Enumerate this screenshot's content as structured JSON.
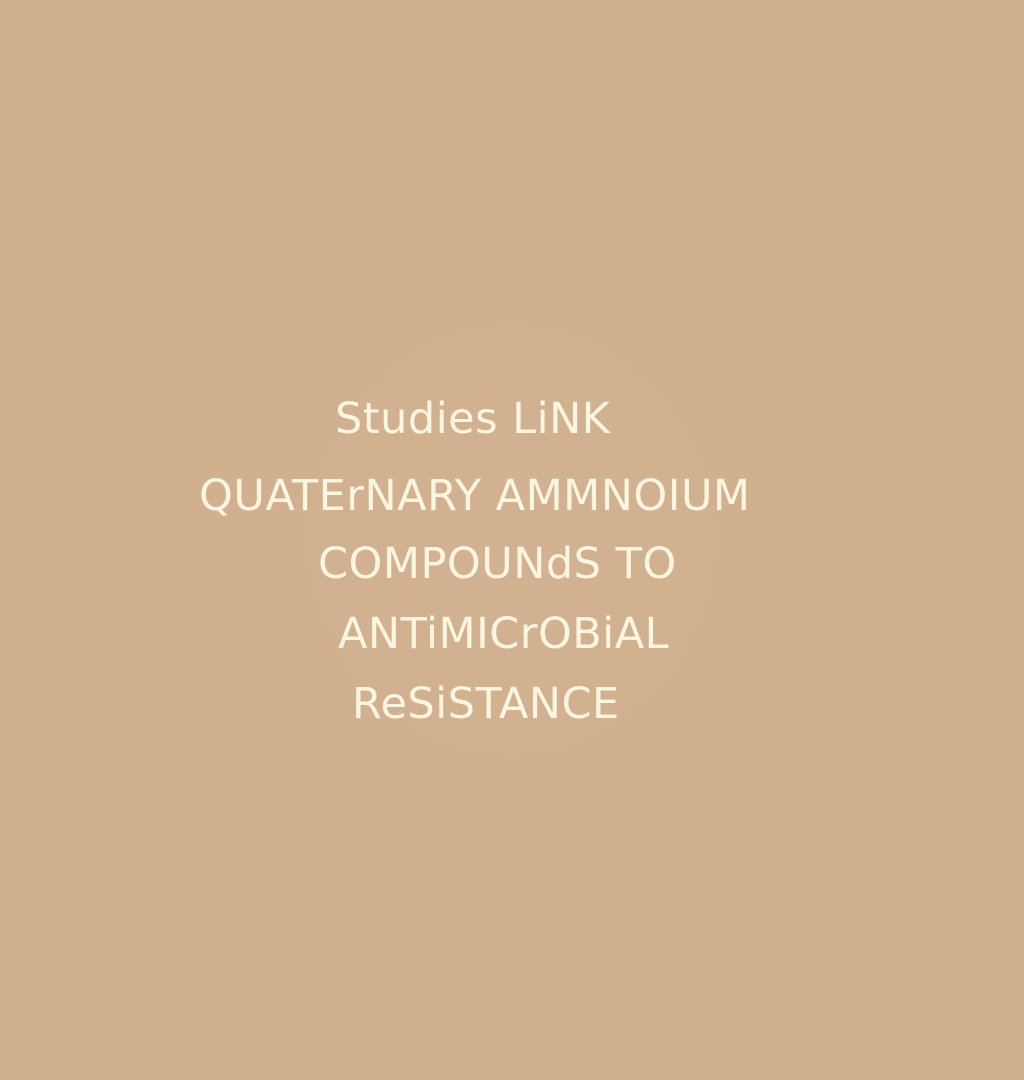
{
  "headline": {
    "lines": [
      "Studies LiNK",
      "QUATErNARY AMMNOIUM",
      "COMPOUNdS TO",
      "ANTiMICrOBiAL",
      "ReSiSTANCE"
    ]
  },
  "colors": {
    "background": "#d0af8d",
    "text": "#fbf6e2"
  }
}
